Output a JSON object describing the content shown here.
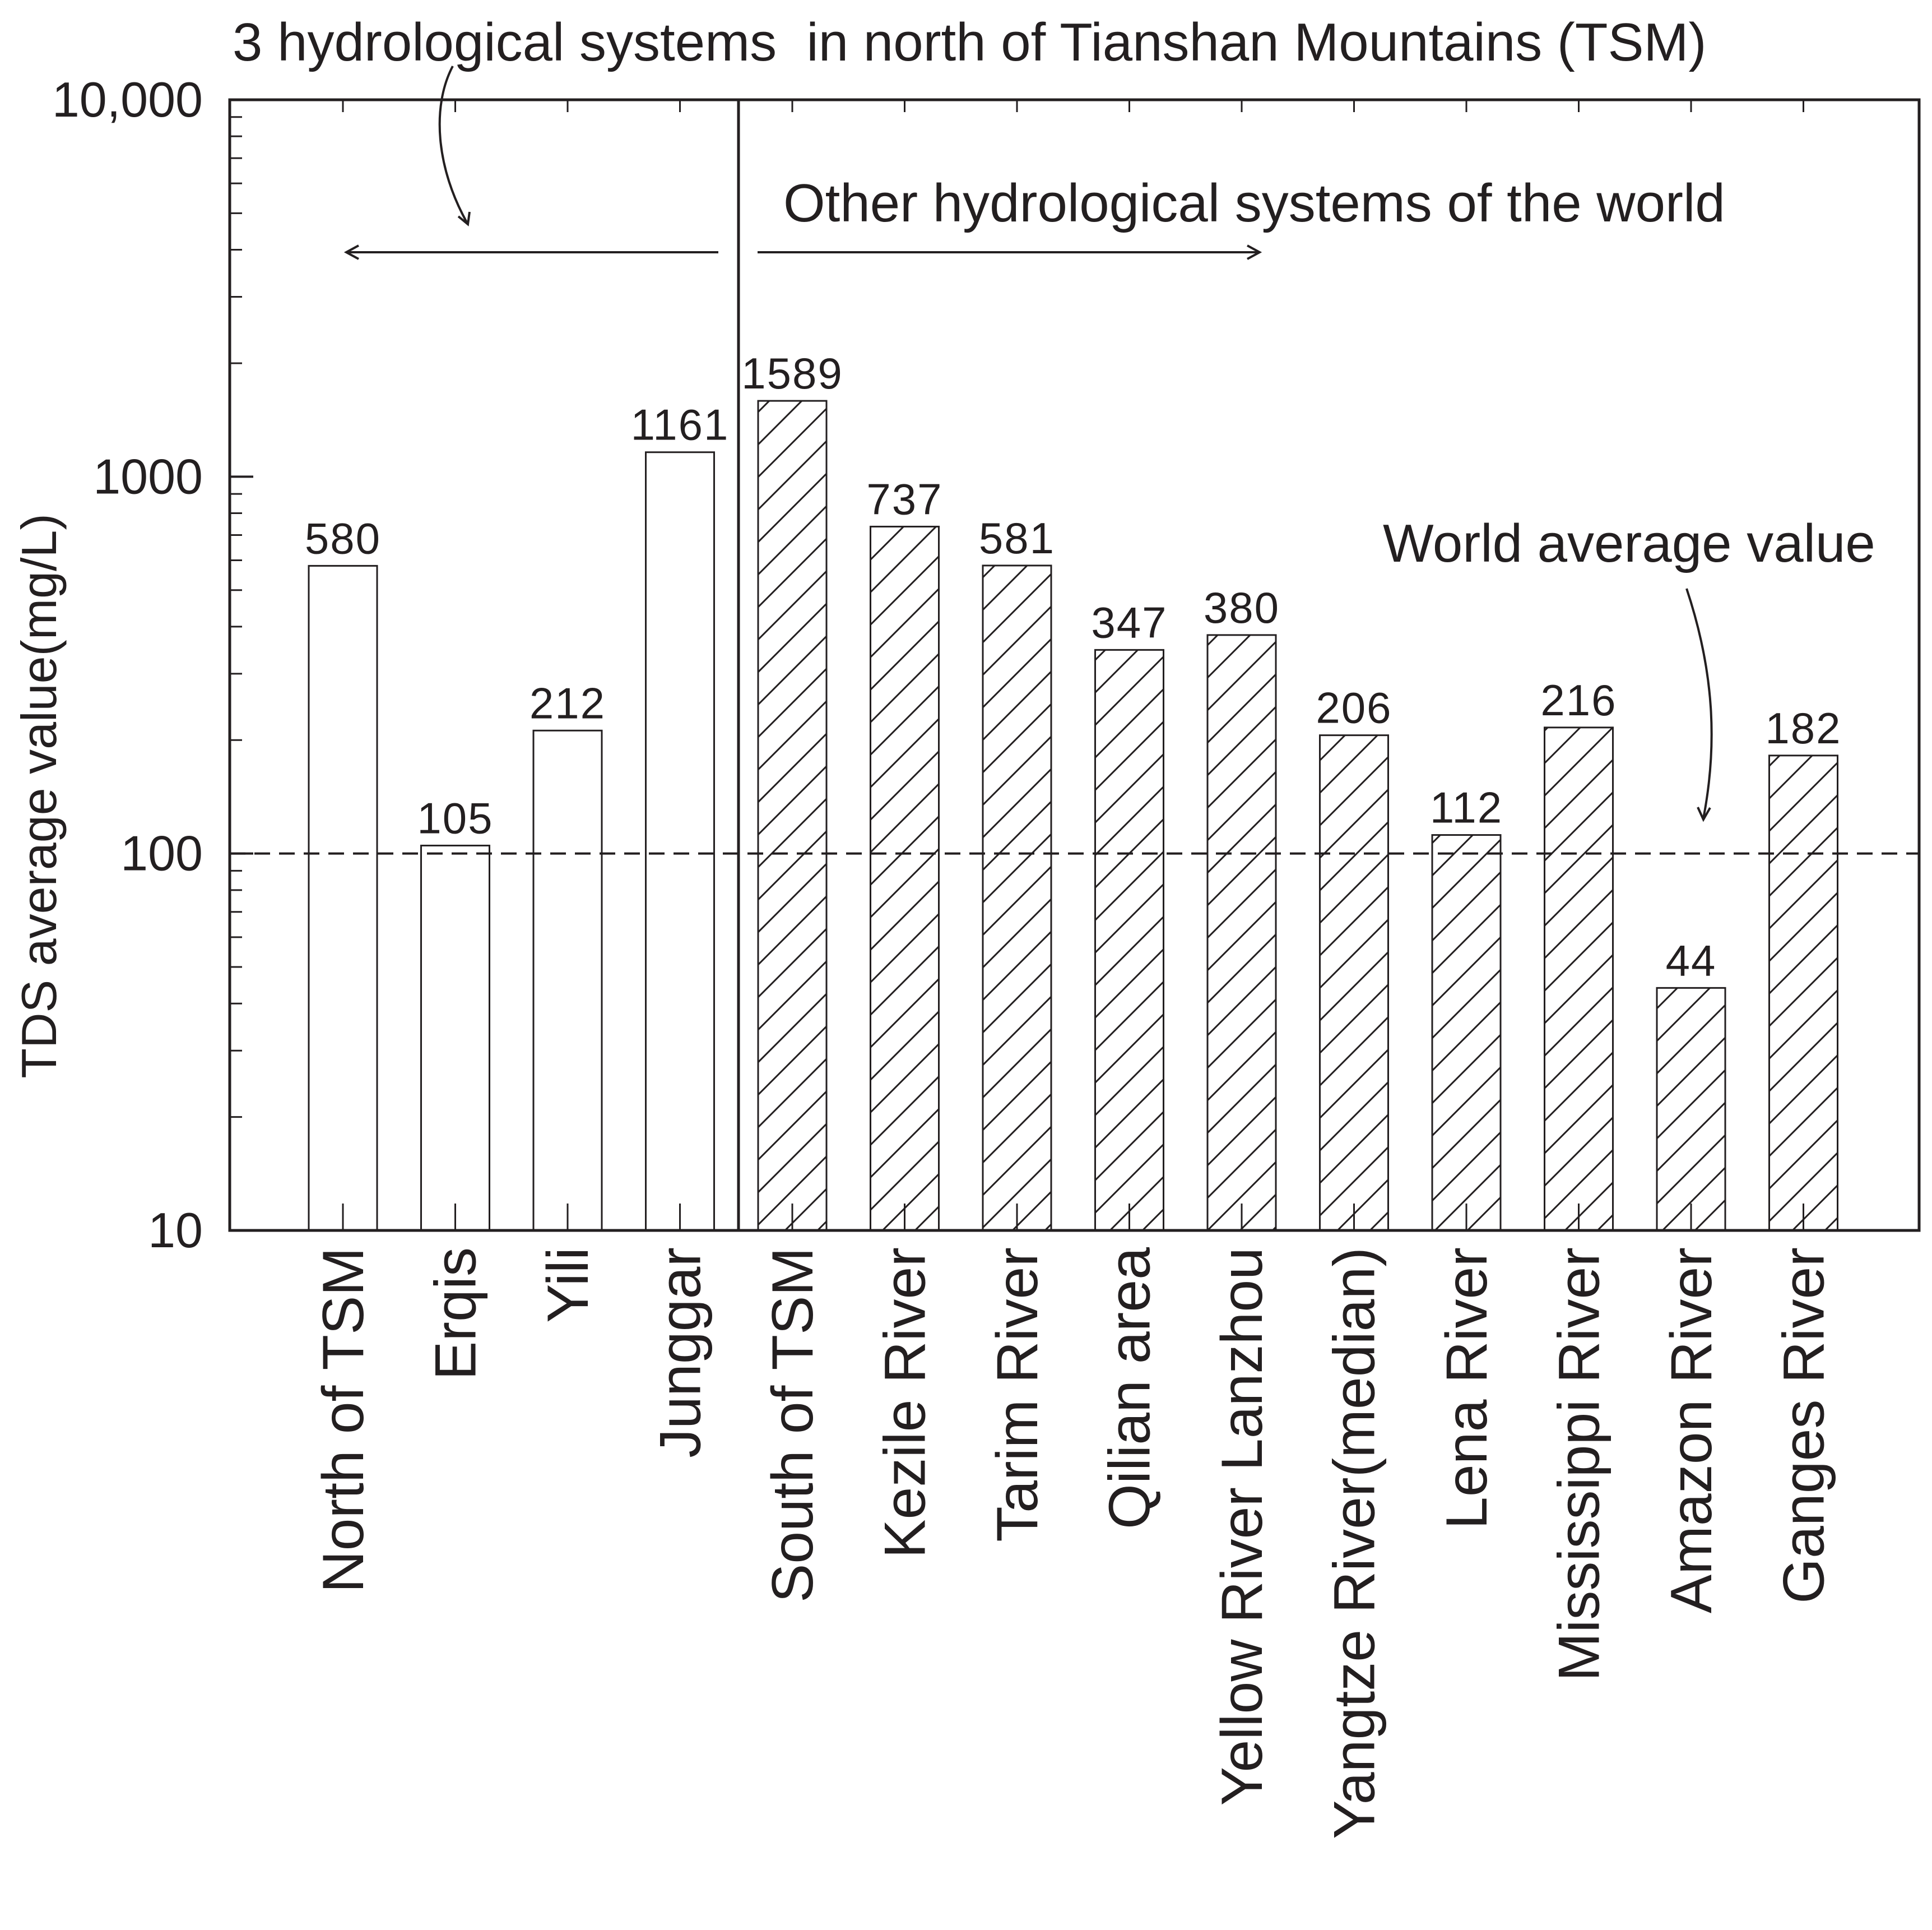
{
  "chart_data": {
    "type": "bar",
    "ylabel": "TDS average value(mg/L)",
    "yscale": "log",
    "ylim": [
      10,
      10000
    ],
    "y_ticks": [
      10,
      100,
      1000,
      10000
    ],
    "y_tick_labels": [
      "10",
      "100",
      "1000",
      "10,000"
    ],
    "categories": [
      "North of TSM",
      "Erqis",
      "Yili",
      "Junggar",
      "South of TSM",
      "Kezile  River",
      "Tarim River",
      "Qilian area",
      "Yellow River Lanzhou",
      "Yangtze River(median)",
      "Lena River",
      "Mississippi River",
      "Amazon River",
      "Ganges River"
    ],
    "values": [
      580,
      105,
      212,
      1161,
      1589,
      737,
      581,
      347,
      380,
      206,
      112,
      216,
      44,
      182
    ],
    "data_labels": [
      "580",
      "105",
      "212",
      "1161",
      "1589",
      "737",
      "581",
      "347",
      "380",
      "206",
      "112",
      "216",
      "44",
      "182"
    ],
    "groups": [
      {
        "label": "3 hydrological systems  in north of Tianshan Mountains (TSM)",
        "fill": "none",
        "count": 4
      },
      {
        "label": "Other hydrological systems of the world",
        "fill": "hatched",
        "count": 10
      }
    ],
    "reference_line": {
      "label": "World average value",
      "value": 100,
      "style": "dashed"
    },
    "grid": false,
    "colors": {
      "ink": "#231f20",
      "background": "#ffffff"
    }
  }
}
